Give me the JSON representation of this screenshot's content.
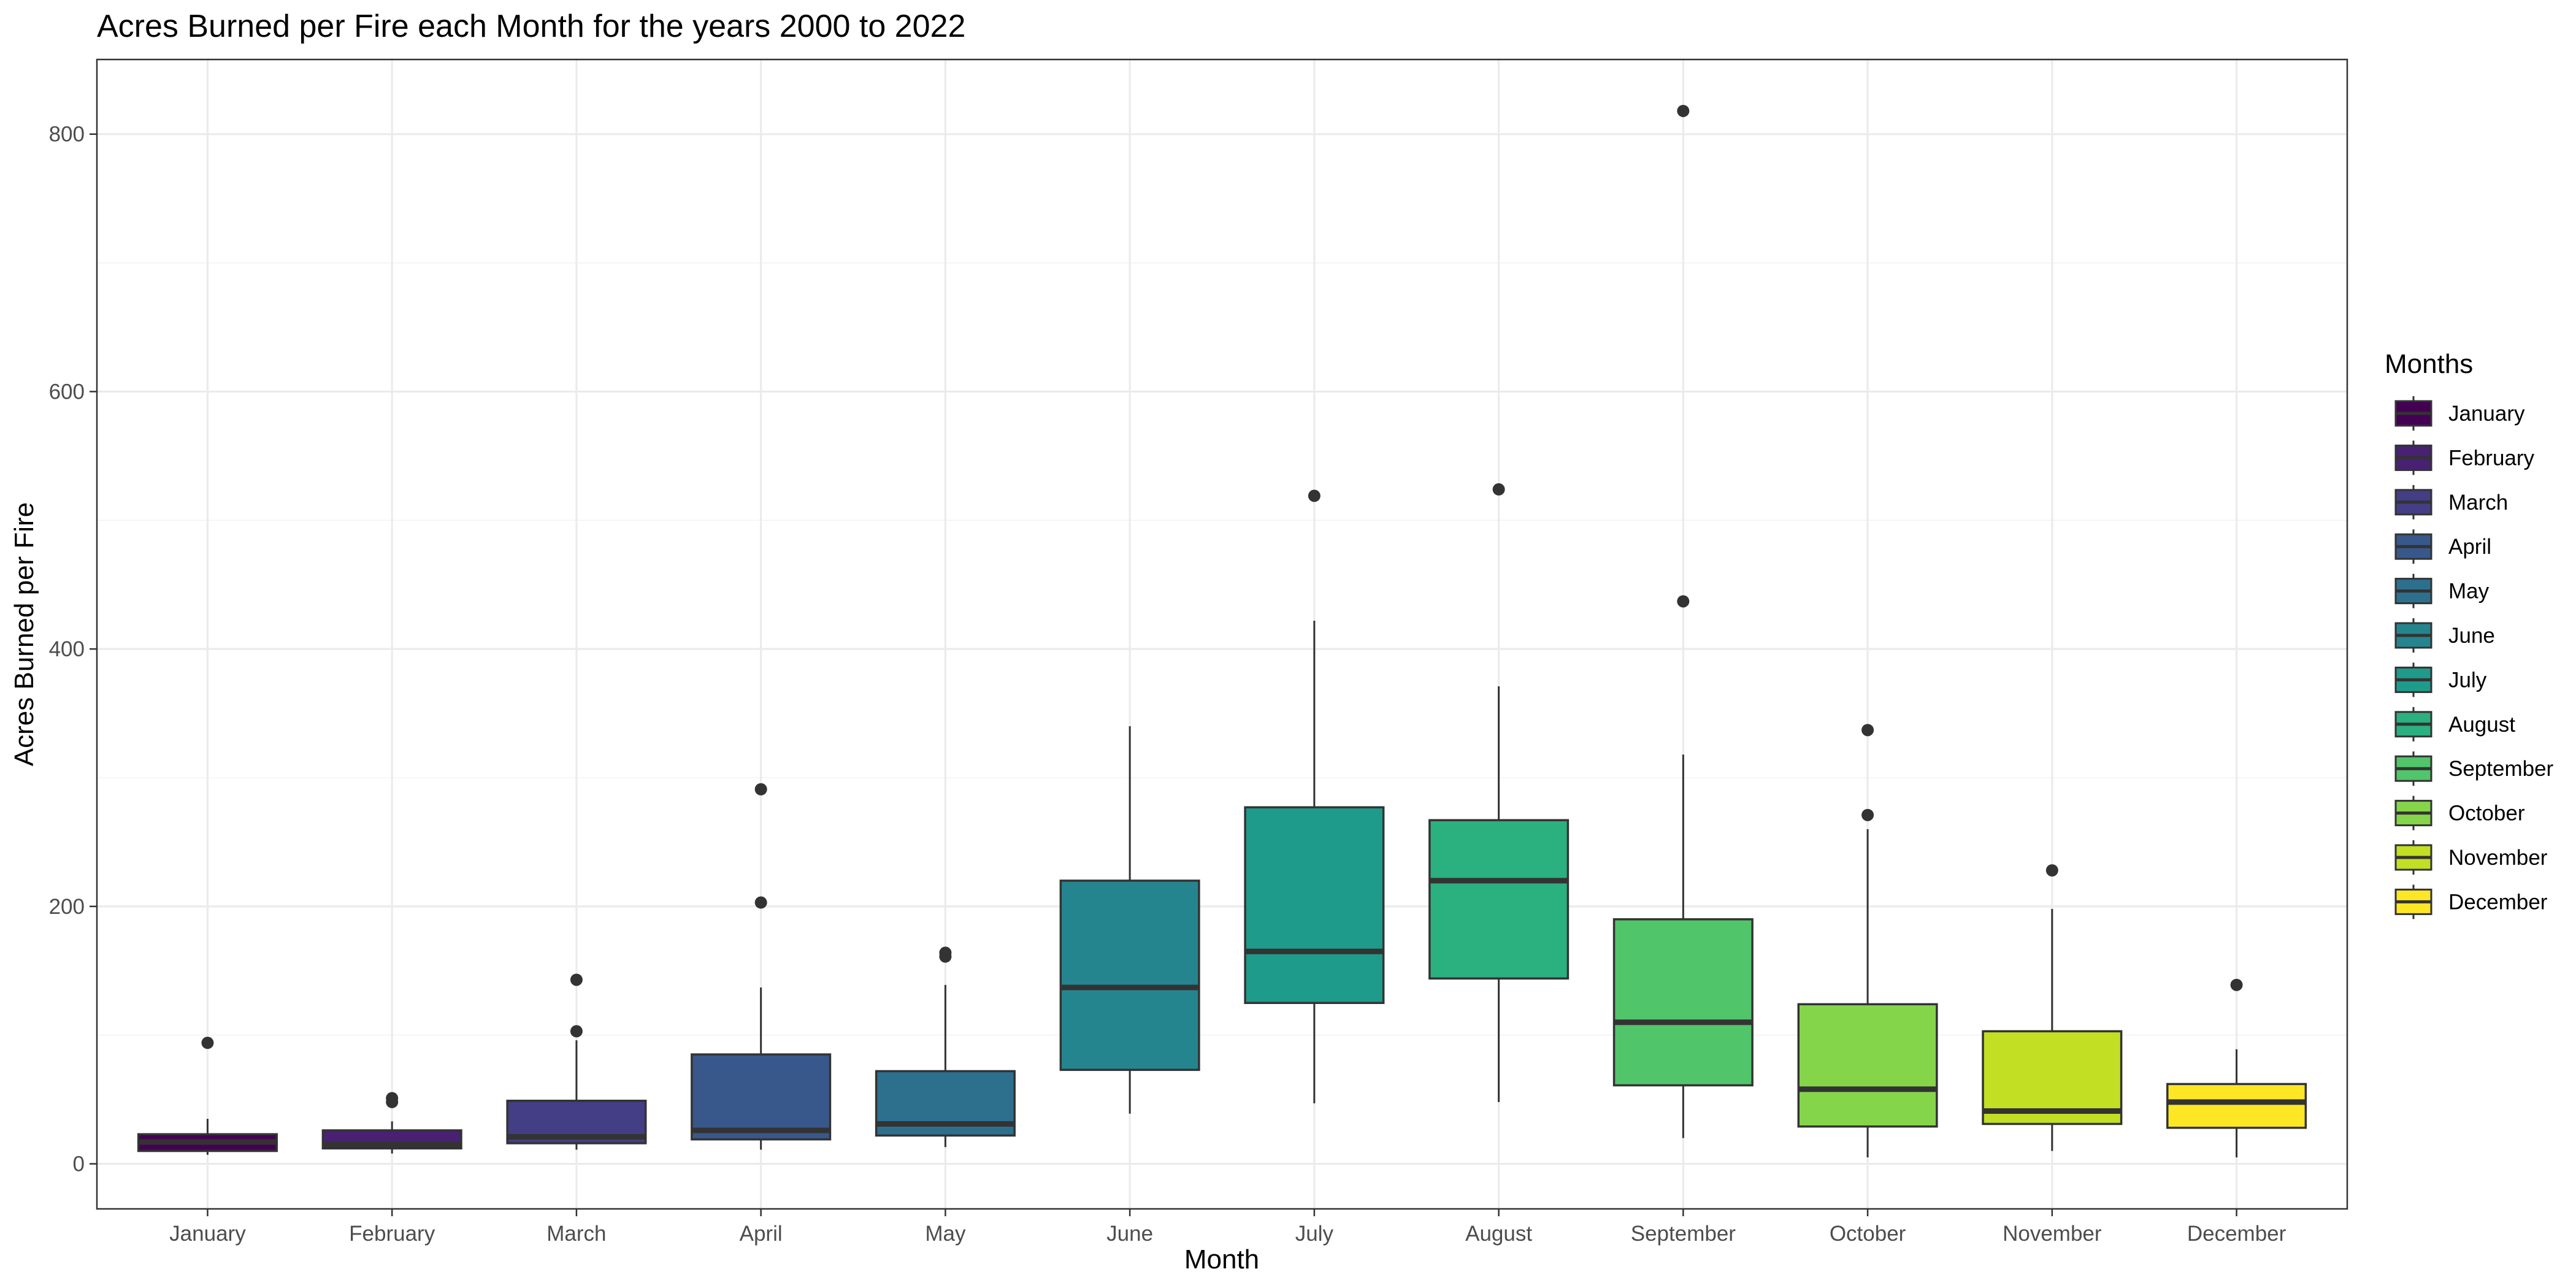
{
  "chart_data": {
    "type": "boxplot",
    "title": "Acres Burned per Fire each Month for the years 2000 to 2022",
    "xlabel": "Month",
    "ylabel": "Acres Burned per Fire",
    "ylim": [
      -35,
      858
    ],
    "yticks": [
      0,
      200,
      400,
      600,
      800
    ],
    "grid": true,
    "legend": {
      "title": "Months",
      "placement": "right"
    },
    "categories": [
      "January",
      "February",
      "March",
      "April",
      "May",
      "June",
      "July",
      "August",
      "September",
      "October",
      "November",
      "December"
    ],
    "colors": [
      "#440154",
      "#482173",
      "#433E85",
      "#38588C",
      "#2D708E",
      "#25858E",
      "#1E9B8A",
      "#2BB07F",
      "#51C56A",
      "#85D54A",
      "#C2DF23",
      "#FDE725"
    ],
    "boxes": [
      {
        "lower_whisker": 7,
        "q1": 10,
        "median": 17,
        "q3": 23,
        "upper_whisker": 35,
        "outliers": [
          94
        ]
      },
      {
        "lower_whisker": 8,
        "q1": 12,
        "median": 15,
        "q3": 26,
        "upper_whisker": 33,
        "outliers": [
          48,
          51
        ]
      },
      {
        "lower_whisker": 11,
        "q1": 16,
        "median": 21,
        "q3": 49,
        "upper_whisker": 96,
        "outliers": [
          103,
          143
        ]
      },
      {
        "lower_whisker": 11,
        "q1": 19,
        "median": 26,
        "q3": 85,
        "upper_whisker": 137,
        "outliers": [
          203,
          291
        ]
      },
      {
        "lower_whisker": 13,
        "q1": 22,
        "median": 31,
        "q3": 72,
        "upper_whisker": 139,
        "outliers": [
          161,
          164
        ]
      },
      {
        "lower_whisker": 39,
        "q1": 73,
        "median": 137,
        "q3": 220,
        "upper_whisker": 340,
        "outliers": []
      },
      {
        "lower_whisker": 47,
        "q1": 125,
        "median": 165,
        "q3": 277,
        "upper_whisker": 422,
        "outliers": [
          519
        ]
      },
      {
        "lower_whisker": 48,
        "q1": 144,
        "median": 220,
        "q3": 267,
        "upper_whisker": 371,
        "outliers": [
          524
        ]
      },
      {
        "lower_whisker": 20,
        "q1": 61,
        "median": 110,
        "q3": 190,
        "upper_whisker": 318,
        "outliers": [
          437,
          818
        ]
      },
      {
        "lower_whisker": 5,
        "q1": 29,
        "median": 58,
        "q3": 124,
        "upper_whisker": 260,
        "outliers": [
          271,
          337
        ]
      },
      {
        "lower_whisker": 10,
        "q1": 31,
        "median": 41,
        "q3": 103,
        "upper_whisker": 198,
        "outliers": [
          228
        ]
      },
      {
        "lower_whisker": 5,
        "q1": 28,
        "median": 48,
        "q3": 62,
        "upper_whisker": 89,
        "outliers": [
          139
        ]
      }
    ]
  }
}
